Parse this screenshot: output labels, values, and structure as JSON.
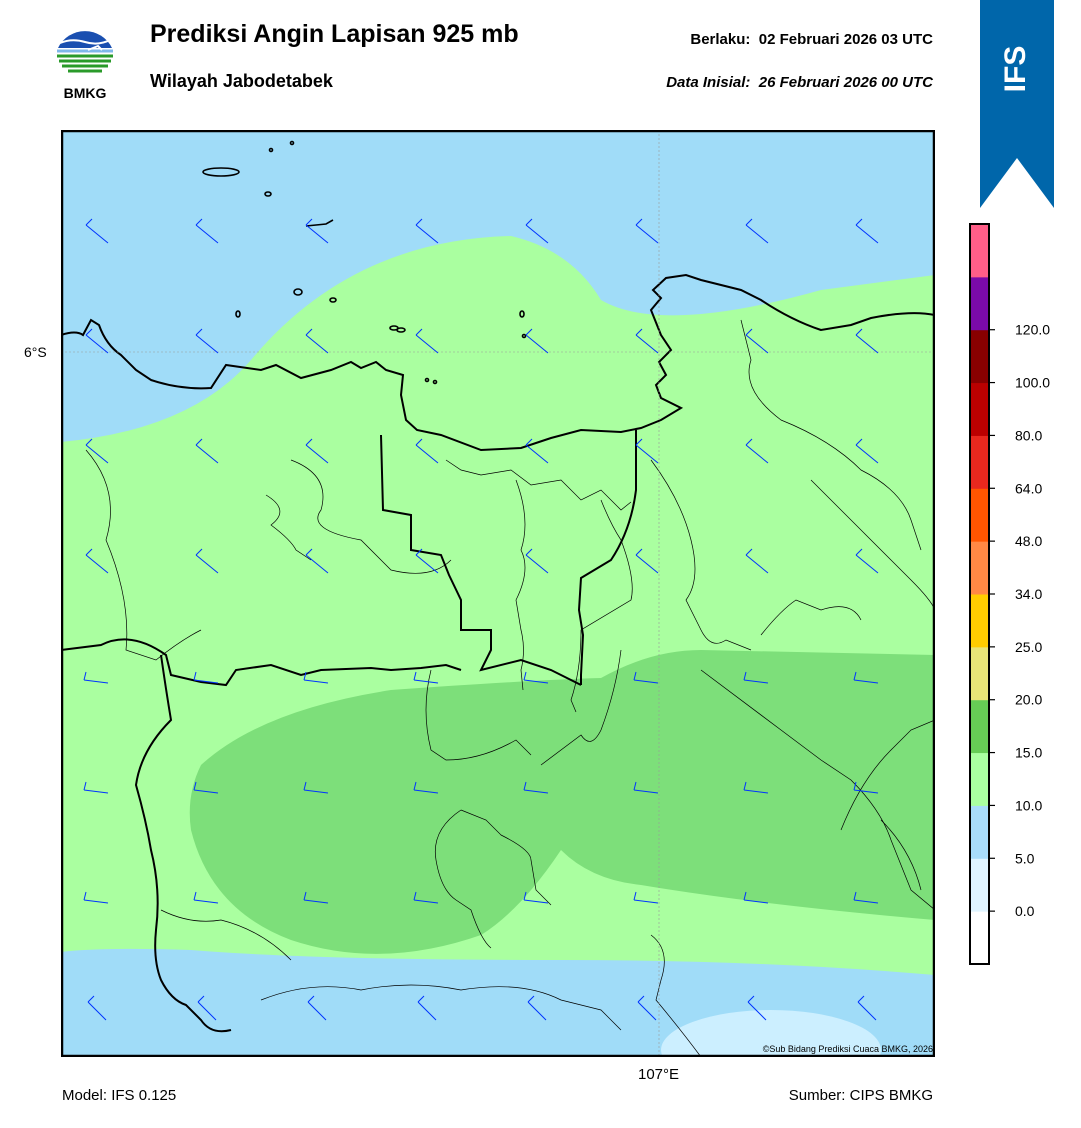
{
  "header": {
    "title": "Prediksi Angin Lapisan 925 mb",
    "subtitle": "Wilayah Jabodetabek",
    "valid_label": "Berlaku:",
    "valid_time": "02 Februari 2026 03 UTC",
    "init_label": "Data Inisial:",
    "init_time": "26 Februari 2026 00 UTC"
  },
  "logo": {
    "text": "BMKG",
    "icon": "bmkg-logo-icon"
  },
  "model_ribbon": {
    "text": "IFS",
    "color": "#0066aa"
  },
  "map": {
    "lat_label": "6°S",
    "lon_label": "107°E",
    "copyright": "©Sub Bidang Prediksi Cuaca BMKG, 2026",
    "ocean_color": "#a0dcf8",
    "land_outline_color": "#000000",
    "barb_color": "#0033ff"
  },
  "colorbar": {
    "ticks": [
      "0.0",
      "5.0",
      "10.0",
      "15.0",
      "20.0",
      "25.0",
      "34.0",
      "48.0",
      "64.0",
      "80.0",
      "100.0",
      "120.0"
    ],
    "colors": [
      "#ffffff",
      "#dff4ff",
      "#a8dcfa",
      "#aaffa0",
      "#66cc55",
      "#e8e477",
      "#ffcc00",
      "#ff8844",
      "#ff5500",
      "#e8281e",
      "#bb0000",
      "#880000",
      "#7a0aa8",
      "#ff5e88"
    ]
  },
  "footer": {
    "model": "Model: IFS 0.125",
    "source": "Sumber: CIPS BMKG"
  }
}
